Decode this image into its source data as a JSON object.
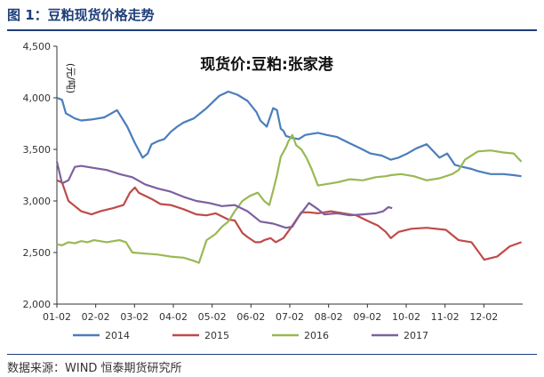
{
  "caption": "图 1：豆粕现货价格走势",
  "source": "数据来源：WIND  恒泰期货研究所",
  "colors": {
    "axis": "#333333",
    "frame": "#1f3e7a",
    "2014": "#4a7ebb",
    "2015": "#be4b48",
    "2016": "#98b954",
    "2017": "#7d60a0"
  },
  "chart_data": {
    "type": "line",
    "title": "现货价:豆粕:张家港",
    "ylabel": "(元/吨)",
    "ylim": [
      2000,
      4500
    ],
    "yticks": [
      "2,000",
      "2,500",
      "3,000",
      "3,500",
      "4,000",
      "4,500"
    ],
    "xlim": [
      1,
      365
    ],
    "xticks": [
      "01-02",
      "02-02",
      "03-02",
      "04-02",
      "05-02",
      "06-02",
      "07-02",
      "08-02",
      "09-02",
      "10-02",
      "11-02",
      "12-02"
    ],
    "grid": false,
    "legend_position": "bottom",
    "series": [
      {
        "name": "2014",
        "x": [
          1,
          5,
          8,
          15,
          20,
          28,
          38,
          48,
          56,
          62,
          68,
          72,
          75,
          80,
          85,
          90,
          95,
          100,
          108,
          118,
          128,
          135,
          142,
          150,
          157,
          160,
          165,
          170,
          173,
          176,
          178,
          180,
          185,
          190,
          195,
          200,
          205,
          212,
          220,
          228,
          238,
          246,
          255,
          262,
          268,
          275,
          282,
          290,
          300,
          306,
          312,
          318,
          325,
          330,
          340,
          350,
          358,
          364
        ],
        "values": [
          4000,
          3980,
          3850,
          3800,
          3780,
          3790,
          3810,
          3880,
          3720,
          3560,
          3420,
          3460,
          3550,
          3580,
          3600,
          3670,
          3720,
          3760,
          3800,
          3900,
          4020,
          4060,
          4030,
          3970,
          3860,
          3780,
          3720,
          3900,
          3880,
          3700,
          3680,
          3630,
          3610,
          3600,
          3640,
          3650,
          3660,
          3640,
          3620,
          3570,
          3510,
          3460,
          3440,
          3400,
          3420,
          3460,
          3510,
          3550,
          3420,
          3460,
          3350,
          3330,
          3310,
          3290,
          3260,
          3260,
          3250,
          3240
        ]
      },
      {
        "name": "2015",
        "x": [
          1,
          5,
          10,
          15,
          20,
          28,
          35,
          45,
          53,
          58,
          62,
          65,
          70,
          75,
          82,
          90,
          100,
          110,
          118,
          125,
          130,
          135,
          140,
          146,
          150,
          156,
          160,
          163,
          168,
          172,
          178,
          185,
          192,
          198,
          205,
          215,
          225,
          235,
          245,
          252,
          258,
          262,
          268,
          278,
          290,
          305,
          315,
          325,
          335,
          345,
          355,
          364
        ],
        "values": [
          3200,
          3180,
          3000,
          2950,
          2900,
          2870,
          2900,
          2930,
          2960,
          3080,
          3130,
          3080,
          3050,
          3020,
          2970,
          2960,
          2920,
          2870,
          2860,
          2880,
          2850,
          2820,
          2810,
          2690,
          2650,
          2600,
          2600,
          2620,
          2640,
          2600,
          2640,
          2760,
          2890,
          2890,
          2880,
          2900,
          2880,
          2860,
          2800,
          2760,
          2700,
          2640,
          2700,
          2730,
          2740,
          2720,
          2620,
          2600,
          2430,
          2460,
          2560,
          2600
        ]
      },
      {
        "name": "2016",
        "x": [
          1,
          5,
          10,
          15,
          20,
          25,
          30,
          40,
          50,
          55,
          60,
          70,
          80,
          90,
          100,
          108,
          112,
          118,
          125,
          130,
          135,
          140,
          146,
          152,
          158,
          163,
          167,
          170,
          173,
          176,
          180,
          182,
          185,
          188,
          192,
          196,
          200,
          205,
          210,
          220,
          230,
          240,
          250,
          258,
          262,
          270,
          280,
          290,
          300,
          310,
          315,
          320,
          330,
          340,
          350,
          358,
          364
        ],
        "values": [
          2580,
          2570,
          2600,
          2590,
          2610,
          2600,
          2620,
          2600,
          2620,
          2600,
          2500,
          2490,
          2480,
          2460,
          2450,
          2420,
          2400,
          2620,
          2680,
          2750,
          2800,
          2900,
          3000,
          3050,
          3080,
          3000,
          2960,
          3100,
          3250,
          3430,
          3520,
          3580,
          3640,
          3540,
          3500,
          3420,
          3310,
          3150,
          3160,
          3180,
          3210,
          3200,
          3230,
          3240,
          3250,
          3260,
          3240,
          3200,
          3220,
          3260,
          3300,
          3400,
          3480,
          3490,
          3470,
          3460,
          3380
        ]
      },
      {
        "name": "2017",
        "x": [
          1,
          5,
          10,
          15,
          20,
          30,
          40,
          50,
          60,
          70,
          80,
          90,
          100,
          110,
          120,
          130,
          140,
          150,
          160,
          170,
          175,
          180,
          185,
          190,
          198,
          205,
          210,
          220,
          230,
          240,
          250,
          256,
          260,
          263
        ],
        "values": [
          3380,
          3170,
          3200,
          3330,
          3340,
          3320,
          3300,
          3260,
          3230,
          3160,
          3120,
          3090,
          3040,
          3000,
          2980,
          2950,
          2960,
          2900,
          2800,
          2780,
          2760,
          2740,
          2750,
          2850,
          2980,
          2920,
          2870,
          2880,
          2860,
          2870,
          2880,
          2900,
          2940,
          2930
        ]
      }
    ]
  }
}
